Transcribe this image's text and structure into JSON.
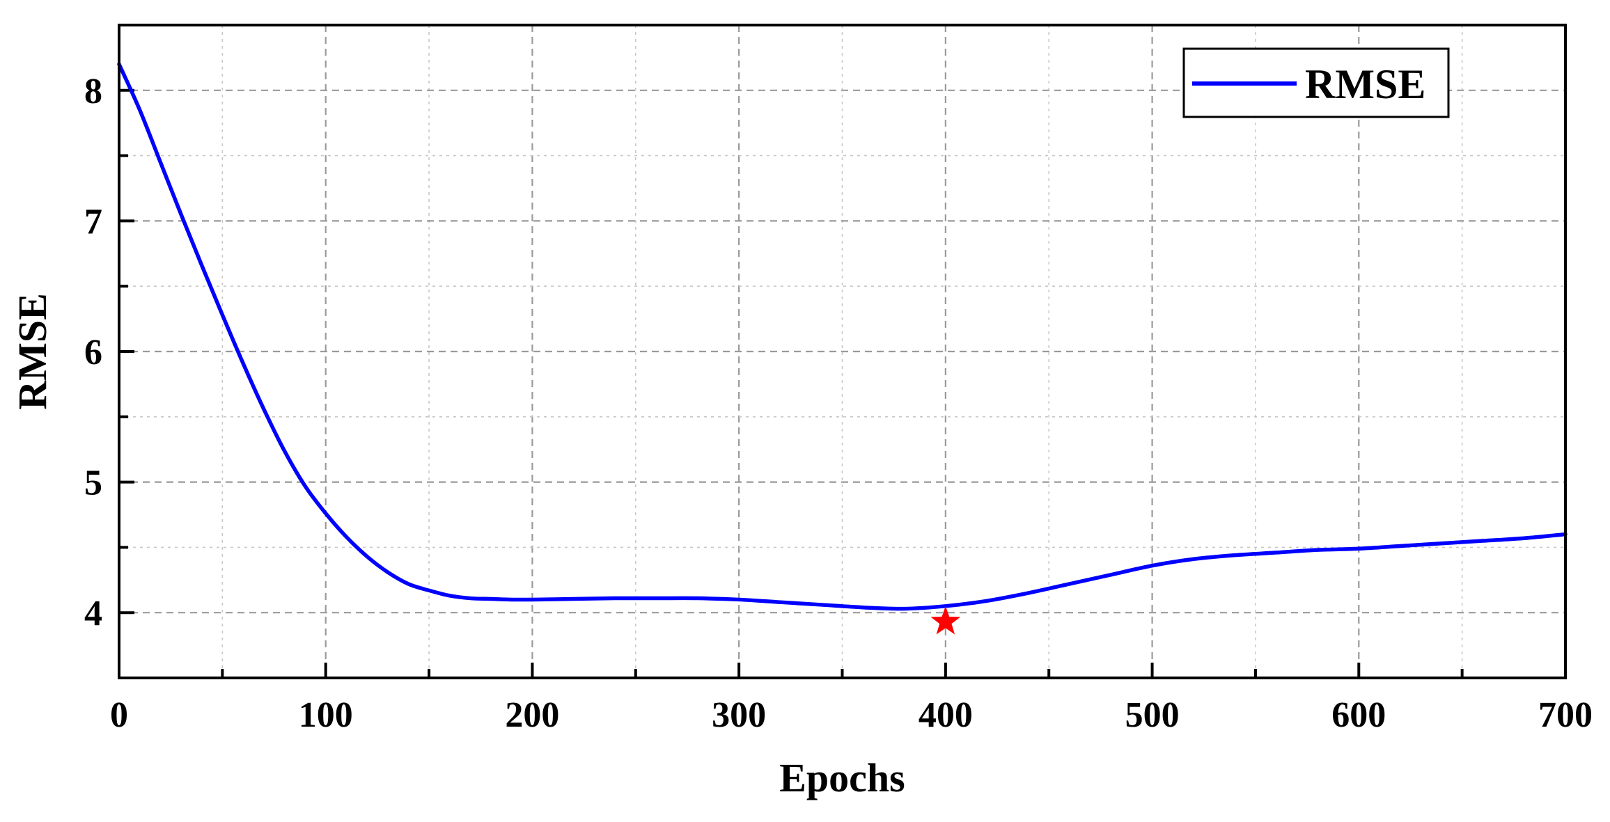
{
  "chart_data": {
    "type": "line",
    "title": "",
    "xlabel": "Epochs",
    "ylabel": "RMSE",
    "xlim": [
      0,
      700
    ],
    "ylim": [
      3.5,
      8.5
    ],
    "xticks": [
      0,
      100,
      200,
      300,
      400,
      500,
      600,
      700
    ],
    "yticks": [
      4,
      5,
      6,
      7,
      8
    ],
    "grid": true,
    "legend_position": "top-right",
    "series": [
      {
        "name": "RMSE",
        "color": "#0000ff",
        "x": [
          0,
          10,
          20,
          30,
          40,
          50,
          60,
          70,
          80,
          90,
          100,
          110,
          120,
          130,
          140,
          150,
          160,
          170,
          180,
          190,
          200,
          220,
          240,
          260,
          280,
          300,
          320,
          340,
          360,
          380,
          400,
          420,
          440,
          460,
          480,
          500,
          520,
          540,
          560,
          580,
          600,
          620,
          640,
          660,
          680,
          700
        ],
        "y": [
          8.2,
          7.85,
          7.45,
          7.05,
          6.66,
          6.28,
          5.91,
          5.56,
          5.24,
          4.97,
          4.76,
          4.58,
          4.43,
          4.31,
          4.22,
          4.17,
          4.13,
          4.11,
          4.105,
          4.1,
          4.1,
          4.105,
          4.11,
          4.11,
          4.11,
          4.1,
          4.08,
          4.06,
          4.04,
          4.03,
          4.05,
          4.09,
          4.15,
          4.22,
          4.29,
          4.36,
          4.41,
          4.44,
          4.46,
          4.48,
          4.49,
          4.51,
          4.53,
          4.55,
          4.57,
          4.6
        ]
      }
    ],
    "annotations": [
      {
        "type": "star-marker",
        "x": 400,
        "y": 3.93,
        "color": "#ff0000"
      }
    ]
  }
}
